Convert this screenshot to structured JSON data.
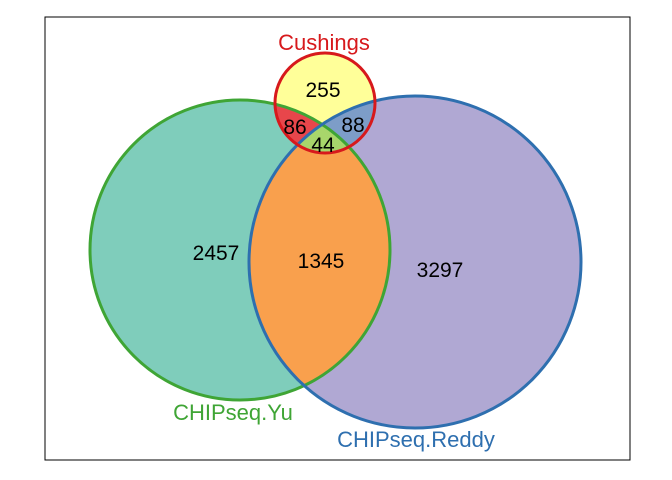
{
  "sets": [
    {
      "key": "yu",
      "label": "CHIPseq.Yu",
      "stroke": "#3fa535",
      "fill": "#7fcdbb"
    },
    {
      "key": "reddy",
      "label": "CHIPseq.Reddy",
      "stroke": "#2e6faf",
      "fill": "#b0a8d3"
    },
    {
      "key": "cushings",
      "label": "Cushings",
      "stroke": "#d7191c",
      "fill": "#ffff99"
    }
  ],
  "regions": {
    "yu_only": "2457",
    "reddy_only": "3297",
    "cushings_only": "255",
    "yu_reddy": "1345",
    "yu_cushings": "86",
    "reddy_cushings": "88",
    "all_three": "44"
  },
  "region_colors": {
    "yu_reddy": "#f9a04d",
    "yu_cushings": "#e8464b",
    "reddy_cushings": "#7d9dc8",
    "all_three": "#a8d66b"
  }
}
